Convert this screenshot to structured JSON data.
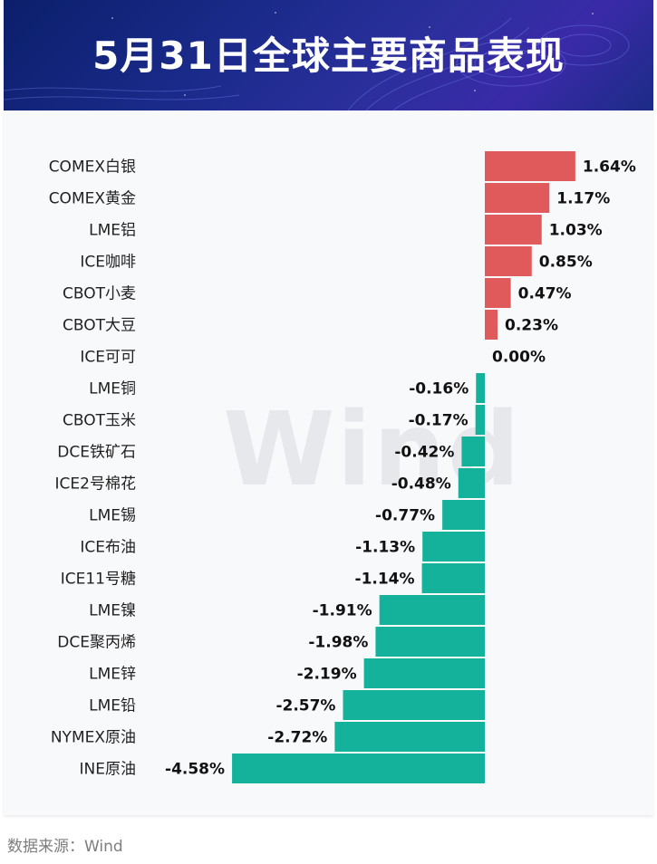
{
  "header": {
    "title": "5月31日全球主要商品表现"
  },
  "watermark": "Wind",
  "footer": {
    "source": "数据来源：Wind"
  },
  "colors": {
    "positive": "#e05a5c",
    "negative": "#14b29a",
    "header_bg": "#1a2a8a"
  },
  "chart_data": {
    "type": "bar",
    "orientation": "horizontal",
    "title": "5月31日全球主要商品表现",
    "categories": [
      "COMEX白银",
      "COMEX黄金",
      "LME铝",
      "ICE咖啡",
      "CBOT小麦",
      "CBOT大豆",
      "ICE可可",
      "LME铜",
      "CBOT玉米",
      "DCE铁矿石",
      "ICE2号棉花",
      "LME锡",
      "ICE布油",
      "ICE11号糖",
      "LME镍",
      "DCE聚丙烯",
      "LME锌",
      "LME铅",
      "NYMEX原油",
      "INE原油"
    ],
    "values": [
      1.64,
      1.17,
      1.03,
      0.85,
      0.47,
      0.23,
      0.0,
      -0.16,
      -0.17,
      -0.42,
      -0.48,
      -0.77,
      -1.13,
      -1.14,
      -1.91,
      -1.98,
      -2.19,
      -2.57,
      -2.72,
      -4.58
    ],
    "labels": [
      "1.64%",
      "1.17%",
      "1.03%",
      "0.85%",
      "0.47%",
      "0.23%",
      "0.00%",
      "-0.16%",
      "-0.17%",
      "-0.42%",
      "-0.48%",
      "-0.77%",
      "-1.13%",
      "-1.14%",
      "-1.91%",
      "-1.98%",
      "-2.19%",
      "-2.57%",
      "-2.72%",
      "-4.58%"
    ],
    "unit": "%",
    "grid": false
  }
}
